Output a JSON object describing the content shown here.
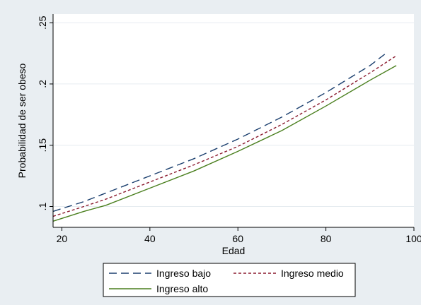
{
  "chart_data": {
    "type": "line",
    "title": "",
    "xlabel": "Edad",
    "ylabel": "Probabilidad de ser obeso",
    "xlim": [
      18,
      100
    ],
    "ylim": [
      0.083,
      0.257
    ],
    "x_ticks": [
      20,
      40,
      60,
      80,
      100
    ],
    "x_tick_labels": [
      "20",
      "40",
      "60",
      "80",
      "100"
    ],
    "y_ticks": [
      0.1,
      0.15,
      0.2,
      0.25
    ],
    "y_tick_labels": [
      ".1",
      ".15",
      ".2",
      ".25"
    ],
    "grid": true,
    "legend_position": "bottom",
    "series": [
      {
        "name": "Ingreso bajo",
        "color": "#1b3f6e",
        "style": "long-dash",
        "x": [
          18,
          25,
          30,
          40,
          50,
          60,
          70,
          80,
          90,
          94
        ],
        "y": [
          0.096,
          0.104,
          0.111,
          0.125,
          0.139,
          0.155,
          0.173,
          0.193,
          0.215,
          0.226
        ]
      },
      {
        "name": "Ingreso medio",
        "color": "#8b1a2e",
        "style": "short-dash",
        "x": [
          18,
          25,
          30,
          40,
          50,
          60,
          70,
          80,
          90,
          96
        ],
        "y": [
          0.092,
          0.1,
          0.106,
          0.12,
          0.134,
          0.149,
          0.167,
          0.187,
          0.209,
          0.223
        ]
      },
      {
        "name": "Ingreso alto",
        "color": "#4a7f1e",
        "style": "solid",
        "x": [
          18,
          25,
          30,
          40,
          50,
          60,
          70,
          80,
          90,
          96
        ],
        "y": [
          0.088,
          0.096,
          0.101,
          0.115,
          0.129,
          0.145,
          0.162,
          0.182,
          0.203,
          0.215
        ]
      }
    ]
  },
  "colors": {
    "outer_background": "#e9eef2",
    "plot_background": "#ffffff",
    "grid": "#e6ecf0",
    "axis": "#000000"
  }
}
